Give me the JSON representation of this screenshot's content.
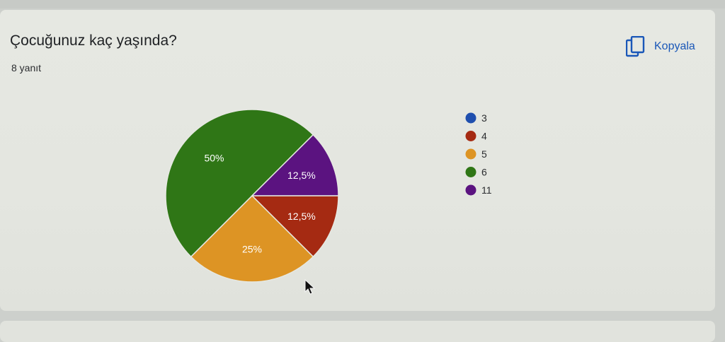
{
  "question": {
    "title": "Çocuğunuz kaç yaşında?",
    "responses": "8 yanıt"
  },
  "copy_button": {
    "label": "Kopyala",
    "icon": "copy-icon",
    "color": "#1a57b8"
  },
  "chart_data": {
    "type": "pie",
    "categories": [
      "3",
      "4",
      "5",
      "6",
      "11"
    ],
    "values": [
      0,
      1,
      2,
      4,
      1
    ],
    "slice_labels": [
      "",
      "12,5%",
      "25%",
      "50%",
      "12,5%"
    ],
    "colors": [
      "#1f4fae",
      "#a52a12",
      "#dd9424",
      "#2f7616",
      "#5b1380"
    ],
    "legend_position": "right"
  }
}
